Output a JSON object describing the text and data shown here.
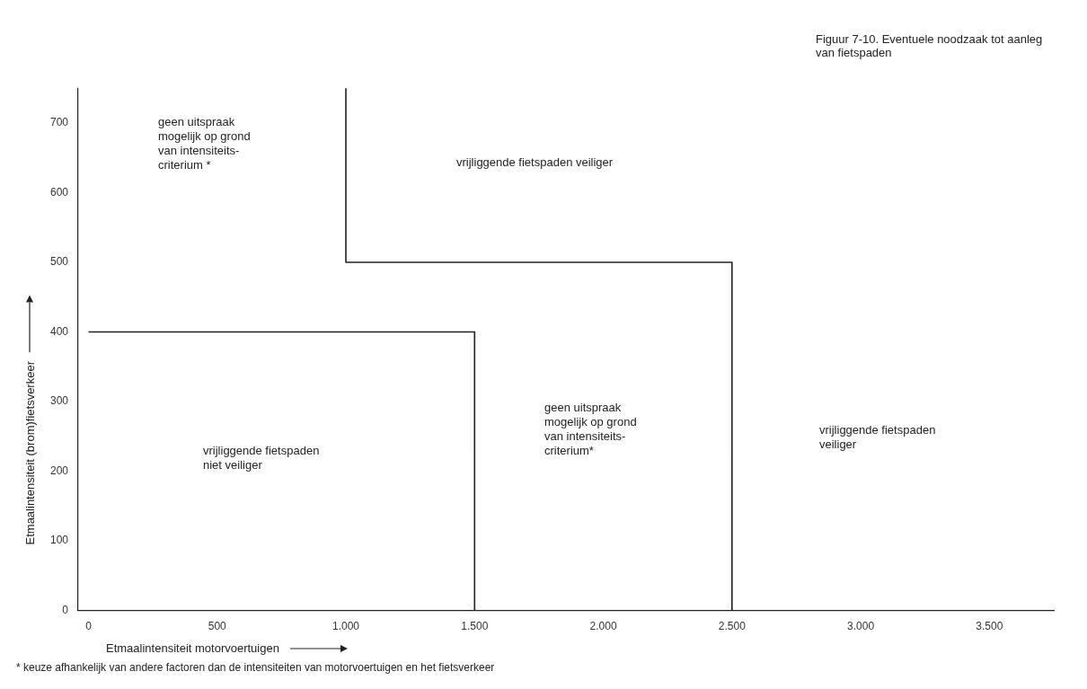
{
  "chart_data": {
    "type": "line",
    "title": "Figuur 7-10. Eventuele noodzaak tot aanleg van fietspaden",
    "xlabel": "Etmaalintensiteit motorvoertuigen",
    "ylabel": "Etmaalintensiteit (brom)fietsverkeer",
    "series": [
      {
        "color": "#222222",
        "x": [
          0,
          1500,
          1500
        ],
        "values": [
          400,
          400,
          0
        ]
      },
      {
        "color": "#222222",
        "x": [
          1000,
          1000,
          2500,
          2500
        ],
        "values": [
          750,
          500,
          500,
          0
        ]
      }
    ],
    "xlim": [
      -40,
      3750
    ],
    "ylim": [
      0,
      750
    ],
    "xticks": [
      0,
      500,
      {
        "value": 1000,
        "label": "1.000"
      },
      {
        "value": 1500,
        "label": "1.500"
      },
      {
        "value": 2000,
        "label": "2.000"
      },
      {
        "value": 2500,
        "label": "2.500"
      },
      {
        "value": 3000,
        "label": "3.000"
      },
      {
        "value": 3500,
        "label": "3.500"
      }
    ],
    "yticks": [
      0,
      100,
      200,
      300,
      400,
      500,
      600,
      700
    ],
    "grid": false,
    "legend": false,
    "annotations": [
      "geen uitspraak\nmogelijk op grond\nvan intensiteits-\ncriterium *",
      "vrijliggende fietspaden veiliger",
      "vrijliggende fietspaden\nniet veiliger",
      "geen uitspraak\nmogelijk op grond\nvan intensiteits-\ncriterium*",
      "vrijliggende fietspaden\nveiliger",
      "* keuze afhankelijk van andere factoren dan de intensiteiten van motorvoertuigen en het fietsverkeer"
    ]
  }
}
